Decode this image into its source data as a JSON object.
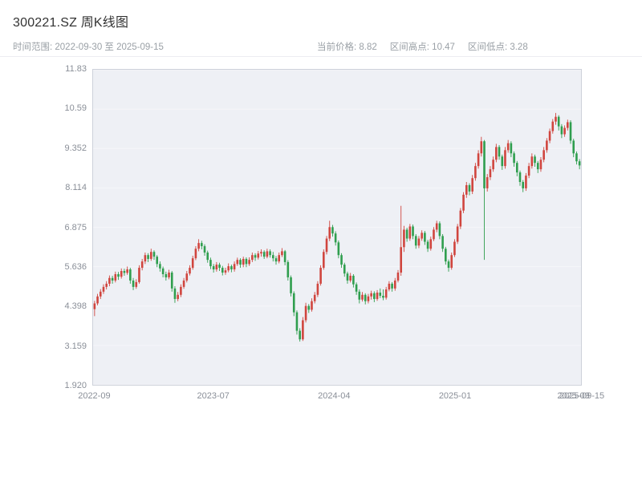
{
  "header": {
    "title": "300221.SZ 周K线图",
    "time_range": "时间范围: 2022-09-30 至 2025-09-15",
    "stats": [
      "当前价格: 8.82",
      "区间高点: 10.47",
      "区间低点: 3.28"
    ]
  },
  "chart_data": {
    "type": "candlestick",
    "title": "300221.SZ 周K线图",
    "interval": "weekly",
    "x_start": "2022-09-30",
    "x_end": "2025-09-15",
    "current_price": 8.82,
    "range_high": 10.47,
    "range_low": 3.28,
    "ylim": [
      1.92,
      11.83
    ],
    "grid": false,
    "legend": "none",
    "up_color": "#d0453e",
    "down_color": "#2f9e4e",
    "plot_bg": "#eef0f5",
    "y_ticks": [
      {
        "label": "11.83",
        "value": 11.83
      },
      {
        "label": "10.59",
        "value": 10.59
      },
      {
        "label": "9.352",
        "value": 9.352
      },
      {
        "label": "8.114",
        "value": 8.114
      },
      {
        "label": "6.875",
        "value": 6.875
      },
      {
        "label": "5.636",
        "value": 5.636
      },
      {
        "label": "4.398",
        "value": 4.398
      },
      {
        "label": "3.159",
        "value": 3.159
      },
      {
        "label": "1.920",
        "value": 1.92
      }
    ],
    "x_ticks": [
      {
        "label": "2022-09",
        "f": 0.004
      },
      {
        "label": "2023-07",
        "f": 0.247
      },
      {
        "label": "2024-04",
        "f": 0.494
      },
      {
        "label": "2025-01",
        "f": 0.741
      },
      {
        "label": "2025-09",
        "f": 0.983
      },
      {
        "label": "2025-09-15",
        "f": 1.0
      }
    ],
    "candles": [
      [
        4.3,
        4.56,
        4.08,
        4.48
      ],
      [
        4.48,
        4.78,
        4.42,
        4.7
      ],
      [
        4.7,
        4.93,
        4.62,
        4.85
      ],
      [
        4.85,
        5.08,
        4.78,
        5.0
      ],
      [
        5.0,
        5.18,
        4.92,
        5.1
      ],
      [
        5.1,
        5.36,
        5.02,
        5.28
      ],
      [
        5.28,
        5.35,
        5.1,
        5.2
      ],
      [
        5.2,
        5.48,
        5.14,
        5.4
      ],
      [
        5.4,
        5.47,
        5.22,
        5.32
      ],
      [
        5.32,
        5.58,
        5.26,
        5.5
      ],
      [
        5.5,
        5.57,
        5.35,
        5.44
      ],
      [
        5.44,
        5.64,
        5.38,
        5.55
      ],
      [
        5.55,
        5.6,
        5.1,
        5.2
      ],
      [
        5.2,
        5.28,
        4.9,
        5.0
      ],
      [
        5.0,
        5.24,
        4.94,
        5.15
      ],
      [
        5.15,
        5.68,
        5.1,
        5.6
      ],
      [
        5.6,
        5.88,
        5.52,
        5.8
      ],
      [
        5.8,
        6.08,
        5.72,
        6.0
      ],
      [
        6.0,
        6.06,
        5.78,
        5.88
      ],
      [
        5.88,
        6.2,
        5.82,
        6.1
      ],
      [
        6.1,
        6.15,
        5.85,
        5.95
      ],
      [
        5.95,
        6.0,
        5.62,
        5.72
      ],
      [
        5.72,
        5.8,
        5.48,
        5.58
      ],
      [
        5.58,
        5.64,
        5.3,
        5.4
      ],
      [
        5.4,
        5.48,
        5.2,
        5.3
      ],
      [
        5.3,
        5.54,
        5.24,
        5.45
      ],
      [
        5.45,
        5.5,
        4.85,
        4.95
      ],
      [
        4.95,
        5.02,
        4.5,
        4.62
      ],
      [
        4.62,
        4.84,
        4.55,
        4.75
      ],
      [
        4.75,
        5.08,
        4.68,
        5.0
      ],
      [
        5.0,
        5.28,
        4.94,
        5.2
      ],
      [
        5.2,
        5.5,
        5.14,
        5.42
      ],
      [
        5.42,
        5.68,
        5.36,
        5.6
      ],
      [
        5.6,
        5.98,
        5.54,
        5.9
      ],
      [
        5.9,
        6.28,
        5.84,
        6.2
      ],
      [
        6.2,
        6.5,
        6.12,
        6.38
      ],
      [
        6.38,
        6.45,
        6.18,
        6.28
      ],
      [
        6.28,
        6.34,
        5.98,
        6.08
      ],
      [
        6.08,
        6.14,
        5.76,
        5.85
      ],
      [
        5.85,
        5.92,
        5.56,
        5.65
      ],
      [
        5.65,
        5.72,
        5.45,
        5.55
      ],
      [
        5.55,
        5.78,
        5.48,
        5.7
      ],
      [
        5.7,
        5.76,
        5.5,
        5.6
      ],
      [
        5.6,
        5.66,
        5.36,
        5.45
      ],
      [
        5.45,
        5.6,
        5.38,
        5.52
      ],
      [
        5.52,
        5.74,
        5.46,
        5.65
      ],
      [
        5.65,
        5.7,
        5.46,
        5.55
      ],
      [
        5.55,
        5.8,
        5.48,
        5.72
      ],
      [
        5.72,
        5.92,
        5.66,
        5.85
      ],
      [
        5.85,
        5.9,
        5.6,
        5.7
      ],
      [
        5.7,
        5.95,
        5.62,
        5.88
      ],
      [
        5.88,
        5.93,
        5.62,
        5.72
      ],
      [
        5.72,
        5.93,
        5.66,
        5.85
      ],
      [
        5.85,
        6.08,
        5.78,
        6.0
      ],
      [
        6.0,
        6.06,
        5.82,
        5.92
      ],
      [
        5.92,
        6.13,
        5.86,
        6.05
      ],
      [
        6.05,
        6.18,
        5.95,
        6.1
      ],
      [
        6.1,
        6.15,
        5.88,
        5.95
      ],
      [
        5.95,
        6.2,
        5.9,
        6.12
      ],
      [
        6.12,
        6.18,
        5.92,
        6.0
      ],
      [
        6.0,
        6.1,
        5.8,
        5.9
      ],
      [
        5.9,
        5.97,
        5.7,
        5.8
      ],
      [
        5.8,
        6.08,
        5.74,
        6.0
      ],
      [
        6.0,
        6.22,
        5.94,
        6.12
      ],
      [
        6.12,
        6.16,
        5.68,
        5.78
      ],
      [
        5.78,
        5.84,
        5.2,
        5.3
      ],
      [
        5.3,
        5.36,
        4.7,
        4.8
      ],
      [
        4.8,
        4.86,
        4.08,
        4.2
      ],
      [
        4.2,
        4.26,
        3.5,
        3.62
      ],
      [
        3.62,
        3.7,
        3.28,
        3.35
      ],
      [
        3.35,
        4.05,
        3.3,
        3.95
      ],
      [
        3.95,
        4.5,
        3.88,
        4.4
      ],
      [
        4.4,
        4.46,
        4.18,
        4.28
      ],
      [
        4.28,
        4.64,
        4.22,
        4.55
      ],
      [
        4.55,
        4.84,
        4.48,
        4.75
      ],
      [
        4.75,
        5.18,
        4.68,
        5.1
      ],
      [
        5.1,
        5.68,
        5.04,
        5.6
      ],
      [
        5.6,
        6.18,
        5.54,
        6.1
      ],
      [
        6.1,
        6.6,
        6.02,
        6.52
      ],
      [
        6.52,
        7.08,
        6.44,
        6.88
      ],
      [
        6.88,
        6.95,
        6.58,
        6.68
      ],
      [
        6.68,
        6.75,
        6.3,
        6.4
      ],
      [
        6.4,
        6.46,
        5.9,
        6.0
      ],
      [
        6.0,
        6.06,
        5.6,
        5.7
      ],
      [
        5.7,
        5.76,
        5.32,
        5.42
      ],
      [
        5.42,
        5.48,
        5.1,
        5.2
      ],
      [
        5.2,
        5.44,
        5.14,
        5.35
      ],
      [
        5.35,
        5.4,
        4.98,
        5.08
      ],
      [
        5.08,
        5.14,
        4.75,
        4.85
      ],
      [
        4.85,
        4.92,
        4.48,
        4.6
      ],
      [
        4.6,
        4.84,
        4.54,
        4.75
      ],
      [
        4.75,
        4.8,
        4.45,
        4.55
      ],
      [
        4.55,
        4.78,
        4.48,
        4.7
      ],
      [
        4.7,
        4.88,
        4.6,
        4.8
      ],
      [
        4.8,
        4.86,
        4.52,
        4.62
      ],
      [
        4.62,
        4.9,
        4.56,
        4.82
      ],
      [
        4.82,
        4.95,
        4.65,
        4.72
      ],
      [
        4.72,
        4.92,
        4.58,
        4.66
      ],
      [
        4.66,
        5.0,
        4.6,
        4.92
      ],
      [
        4.92,
        5.18,
        4.86,
        5.1
      ],
      [
        5.1,
        5.15,
        4.85,
        4.95
      ],
      [
        4.95,
        5.28,
        4.88,
        5.2
      ],
      [
        5.2,
        5.53,
        5.14,
        5.45
      ],
      [
        5.45,
        7.55,
        5.35,
        6.25
      ],
      [
        6.25,
        6.92,
        6.1,
        6.8
      ],
      [
        6.8,
        6.86,
        6.42,
        6.52
      ],
      [
        6.52,
        6.98,
        6.45,
        6.9
      ],
      [
        6.9,
        6.96,
        6.5,
        6.6
      ],
      [
        6.6,
        6.66,
        6.2,
        6.3
      ],
      [
        6.3,
        6.6,
        6.22,
        6.52
      ],
      [
        6.52,
        6.78,
        6.45,
        6.7
      ],
      [
        6.7,
        6.76,
        6.32,
        6.42
      ],
      [
        6.42,
        6.48,
        6.1,
        6.2
      ],
      [
        6.2,
        6.58,
        6.14,
        6.5
      ],
      [
        6.5,
        6.88,
        6.44,
        6.8
      ],
      [
        6.8,
        7.08,
        6.72,
        7.0
      ],
      [
        7.0,
        7.06,
        6.5,
        6.6
      ],
      [
        6.6,
        6.66,
        6.1,
        6.2
      ],
      [
        6.2,
        6.26,
        5.7,
        5.8
      ],
      [
        5.8,
        5.86,
        5.48,
        5.6
      ],
      [
        5.6,
        6.08,
        5.54,
        6.0
      ],
      [
        6.0,
        6.5,
        5.94,
        6.42
      ],
      [
        6.42,
        6.98,
        6.35,
        6.9
      ],
      [
        6.9,
        7.48,
        6.82,
        7.4
      ],
      [
        7.4,
        7.98,
        7.32,
        7.9
      ],
      [
        7.9,
        8.3,
        7.8,
        8.2
      ],
      [
        8.2,
        8.26,
        7.88,
        8.0
      ],
      [
        8.0,
        8.52,
        7.92,
        8.42
      ],
      [
        8.42,
        8.9,
        8.34,
        8.8
      ],
      [
        8.8,
        9.3,
        8.72,
        9.2
      ],
      [
        9.2,
        9.72,
        9.1,
        9.58
      ],
      [
        9.58,
        9.62,
        5.85,
        8.1
      ],
      [
        8.1,
        8.55,
        8.0,
        8.45
      ],
      [
        8.45,
        8.8,
        8.36,
        8.7
      ],
      [
        8.7,
        9.1,
        8.62,
        9.0
      ],
      [
        9.0,
        9.5,
        8.92,
        9.4
      ],
      [
        9.4,
        9.46,
        9.0,
        9.1
      ],
      [
        9.1,
        9.16,
        8.68,
        8.8
      ],
      [
        8.8,
        9.4,
        8.72,
        9.3
      ],
      [
        9.3,
        9.62,
        9.22,
        9.52
      ],
      [
        9.52,
        9.58,
        9.08,
        9.2
      ],
      [
        9.2,
        9.26,
        8.78,
        8.9
      ],
      [
        8.9,
        8.96,
        8.48,
        8.6
      ],
      [
        8.6,
        8.66,
        8.18,
        8.3
      ],
      [
        8.3,
        8.36,
        7.98,
        8.1
      ],
      [
        8.1,
        8.58,
        8.02,
        8.5
      ],
      [
        8.5,
        8.9,
        8.42,
        8.8
      ],
      [
        8.8,
        9.2,
        8.72,
        9.1
      ],
      [
        9.1,
        9.16,
        8.78,
        8.9
      ],
      [
        8.9,
        8.96,
        8.58,
        8.7
      ],
      [
        8.7,
        9.08,
        8.62,
        9.0
      ],
      [
        9.0,
        9.4,
        8.92,
        9.3
      ],
      [
        9.3,
        9.68,
        9.22,
        9.6
      ],
      [
        9.6,
        9.98,
        9.52,
        9.9
      ],
      [
        9.9,
        10.28,
        9.82,
        10.2
      ],
      [
        10.2,
        10.47,
        10.1,
        10.35
      ],
      [
        10.35,
        10.4,
        9.92,
        10.05
      ],
      [
        10.05,
        10.12,
        9.68,
        9.8
      ],
      [
        9.8,
        10.08,
        9.72,
        10.0
      ],
      [
        10.0,
        10.26,
        9.92,
        10.18
      ],
      [
        10.18,
        10.24,
        9.5,
        9.6
      ],
      [
        9.6,
        9.66,
        9.08,
        9.2
      ],
      [
        9.2,
        9.26,
        8.85,
        8.95
      ],
      [
        8.95,
        9.02,
        8.7,
        8.82
      ]
    ]
  }
}
